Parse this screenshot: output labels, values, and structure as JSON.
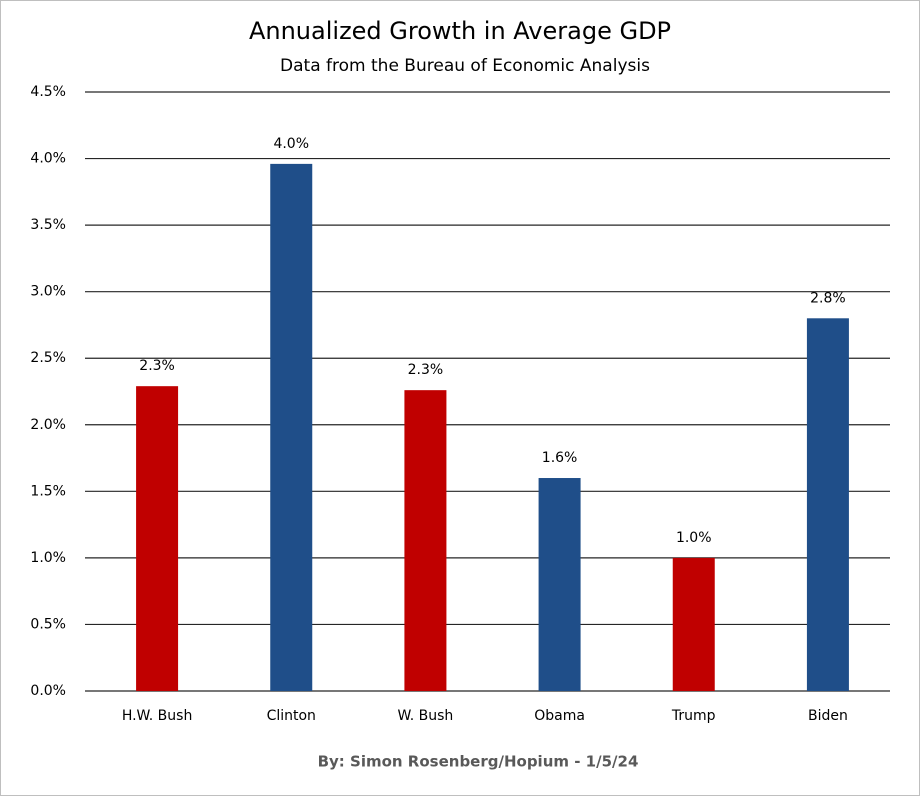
{
  "chart_data": {
    "type": "bar",
    "title": "Annualized Growth in Average GDP",
    "subtitle": "Data from the Bureau of Economic Analysis",
    "footer": "By: Simon Rosenberg/Hopium - 1/5/24",
    "categories": [
      "H.W. Bush",
      "Clinton",
      "W. Bush",
      "Obama",
      "Trump",
      "Biden"
    ],
    "values": [
      2.29,
      3.96,
      2.26,
      1.6,
      1.0,
      2.8
    ],
    "value_labels": [
      "2.3%",
      "4.0%",
      "2.3%",
      "1.6%",
      "1.0%",
      "2.8%"
    ],
    "colors": [
      "#c00000",
      "#1f4e89",
      "#c00000",
      "#1f4e89",
      "#c00000",
      "#1f4e89"
    ],
    "ylim": [
      0,
      4.5
    ],
    "yticks": [
      {
        "value": 0,
        "label": "0.0%"
      },
      {
        "value": 0.5,
        "label": "0.5%"
      },
      {
        "value": 1,
        "label": "1.0%"
      },
      {
        "value": 1.5,
        "label": "1.5%"
      },
      {
        "value": 2,
        "label": "2.0%"
      },
      {
        "value": 2.5,
        "label": "2.5%"
      },
      {
        "value": 3,
        "label": "3.0%"
      },
      {
        "value": 3.5,
        "label": "3.5%"
      },
      {
        "value": 4,
        "label": "4.0%"
      },
      {
        "value": 4.5,
        "label": "4.5%"
      }
    ],
    "grid": true
  }
}
